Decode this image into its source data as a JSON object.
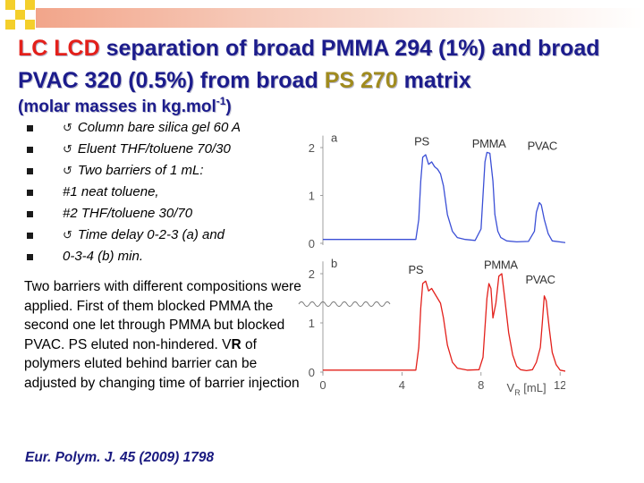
{
  "title": {
    "part1": "LC LCD",
    "part2": " separation of broad PMMA 294 (1%) and broad PVAC 320 (0.5%) from broad ",
    "part3": "PS 270",
    "part4": " matrix"
  },
  "subtitle": {
    "prefix": "(molar masses in kg.mol",
    "superscript": "-1",
    "suffix": ")"
  },
  "bullets": [
    {
      "arrow": true,
      "text": "Column bare silica gel 60 A"
    },
    {
      "arrow": true,
      "text": "Eluent THF/toluene 70/30"
    },
    {
      "arrow": true,
      "text": "Two barriers of 1 mL:"
    },
    {
      "arrow": false,
      "text": "#1 neat toluene,"
    },
    {
      "arrow": false,
      "text": "#2 THF/toluene 30/70"
    },
    {
      "arrow": true,
      "text": "Time delay 0-2-3 (a) and"
    },
    {
      "arrow": false,
      "text": "0-3-4 (b) min."
    }
  ],
  "paragraph": {
    "part1": "Two barriers with different compositions were applied. First of them blocked PMMA the second one let through PMMA but blocked PVAC. PS eluted non-hindered. V",
    "bold": "R",
    "part2": " of polymers eluted behind barrier can be adjusted by changing time of barrier injection"
  },
  "citation": "Eur. Polym. J. 45 (2009) 1798",
  "chart_data": {
    "type": "line",
    "x_ticks": [
      "0",
      "4",
      "8",
      "12"
    ],
    "xlabel": {
      "main": "V",
      "sub": "R",
      "unit": " [mL]"
    },
    "xlim": [
      0,
      12.5
    ],
    "panels": [
      {
        "label": "a",
        "color": "#3b4fd6",
        "y_ticks": [
          "0",
          "1",
          "2"
        ],
        "ylim": [
          0,
          2.3
        ],
        "annotations": [
          {
            "text": "PS",
            "x": 5.0,
            "y": 2.05
          },
          {
            "text": "PMMA",
            "x": 8.4,
            "y": 2.0
          },
          {
            "text": "PVAC",
            "x": 11.1,
            "y": 1.95
          }
        ],
        "series": [
          {
            "x": [
              0,
              4.7,
              4.85,
              4.95,
              5.05,
              5.2,
              5.35,
              5.5,
              5.65,
              5.8,
              5.95,
              6.1,
              6.3,
              6.55,
              6.8,
              7.2,
              7.7,
              8.0,
              8.1,
              8.2,
              8.3,
              8.45,
              8.6,
              8.7,
              8.85,
              9.0,
              9.3,
              9.8,
              10.4,
              10.7,
              10.8,
              10.95,
              11.05,
              11.2,
              11.4,
              11.6,
              12.5
            ],
            "y": [
              0.08,
              0.08,
              0.5,
              1.3,
              1.8,
              1.85,
              1.65,
              1.7,
              1.6,
              1.55,
              1.45,
              1.2,
              0.6,
              0.25,
              0.12,
              0.08,
              0.06,
              0.3,
              1.0,
              1.7,
              1.9,
              1.88,
              1.3,
              0.6,
              0.25,
              0.12,
              0.05,
              0.03,
              0.04,
              0.25,
              0.65,
              0.85,
              0.8,
              0.5,
              0.2,
              0.05,
              0.0
            ]
          }
        ]
      },
      {
        "label": "b",
        "color": "#e3201b",
        "y_ticks": [
          "0",
          "1",
          "2"
        ],
        "ylim": [
          0,
          2.3
        ],
        "annotations": [
          {
            "text": "PS",
            "x": 4.7,
            "y": 2.0
          },
          {
            "text": "PMMA",
            "x": 9.0,
            "y": 2.1
          },
          {
            "text": "PVAC",
            "x": 11.0,
            "y": 1.8
          }
        ],
        "series": [
          {
            "x": [
              0,
              4.7,
              4.85,
              4.95,
              5.05,
              5.2,
              5.35,
              5.5,
              5.65,
              5.8,
              5.95,
              6.1,
              6.3,
              6.55,
              6.8,
              7.3,
              7.9,
              8.1,
              8.2,
              8.3,
              8.4,
              8.5,
              8.6,
              8.75,
              8.9,
              9.05,
              9.2,
              9.4,
              9.6,
              9.8,
              10.0,
              10.3,
              10.6,
              10.8,
              11.0,
              11.1,
              11.2,
              11.3,
              11.45,
              11.6,
              11.8,
              12.0,
              12.5
            ],
            "y": [
              0.04,
              0.04,
              0.5,
              1.3,
              1.8,
              1.85,
              1.65,
              1.7,
              1.6,
              1.5,
              1.4,
              1.1,
              0.55,
              0.2,
              0.08,
              0.04,
              0.05,
              0.3,
              0.9,
              1.5,
              1.8,
              1.7,
              1.1,
              1.4,
              1.95,
              2.0,
              1.5,
              0.8,
              0.35,
              0.12,
              0.05,
              0.03,
              0.05,
              0.2,
              0.5,
              1.0,
              1.55,
              1.45,
              0.9,
              0.4,
              0.15,
              0.04,
              0.0
            ]
          }
        ]
      }
    ]
  }
}
